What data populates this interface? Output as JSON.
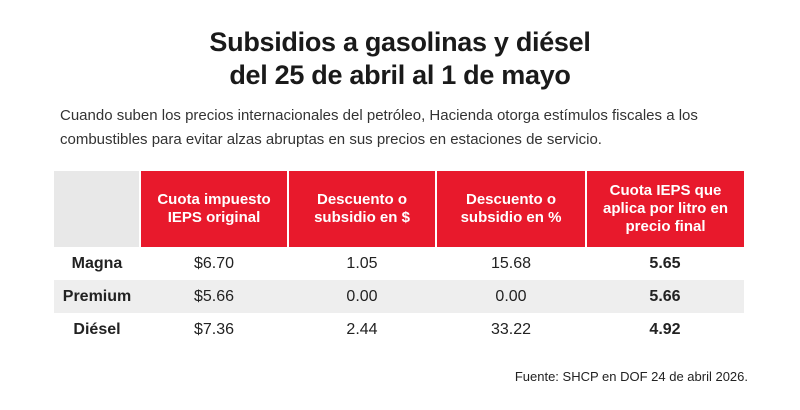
{
  "title": [
    "Subsidios a gasolinas y diésel",
    "del 25 de abril al 1 de mayo"
  ],
  "subtitle": "Cuando suben los precios internacionales del petróleo, Hacienda otorga estímulos fiscales a los combustibles para evitar alzas abruptas en sus precios en estaciones de servicio.",
  "source": "Fuente: SHCP en DOF 24 de abril 2026.",
  "colors": {
    "header_bg": "#e8192c",
    "header_blank": "#e8e8e8",
    "row_shade": "#eeeeee"
  },
  "chart_data": {
    "type": "table",
    "columns": [
      "Cuota impuesto IEPS original",
      "Descuento o subsidio en $",
      "Descuento o subsidio en %",
      "Cuota IEPS que aplica por litro en precio final"
    ],
    "rows": [
      {
        "name": "Magna",
        "values": [
          "$6.70",
          "1.05",
          "15.68",
          "5.65"
        ]
      },
      {
        "name": "Premium",
        "values": [
          "$5.66",
          "0.00",
          "0.00",
          "5.66"
        ]
      },
      {
        "name": "Diésel",
        "values": [
          "$7.36",
          "2.44",
          "33.22",
          "4.92"
        ]
      }
    ]
  }
}
